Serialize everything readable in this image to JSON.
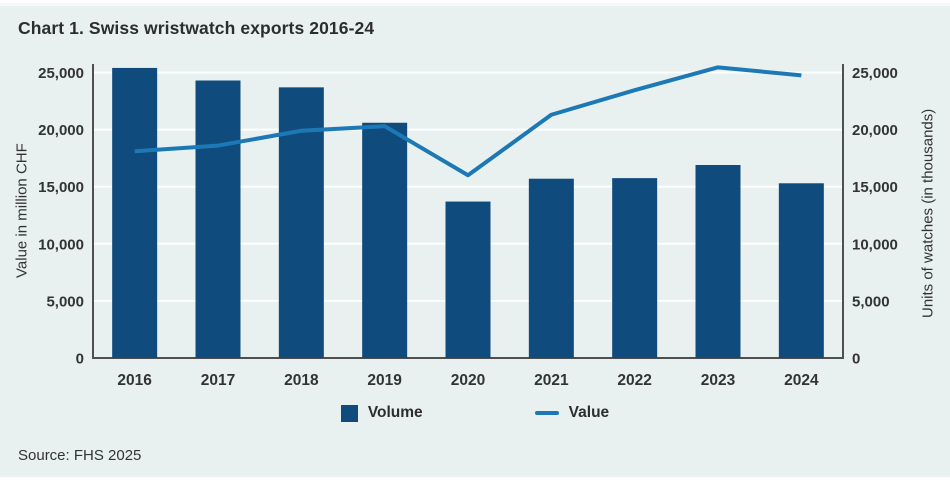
{
  "page": {
    "source": "Source: FHS 2025"
  },
  "chart_data": {
    "type": "bar+line",
    "title": "Chart 1. Swiss wristwatch exports 2016-24",
    "categories": [
      "2016",
      "2017",
      "2018",
      "2019",
      "2020",
      "2021",
      "2022",
      "2023",
      "2024"
    ],
    "series": [
      {
        "name": "Volume",
        "type": "bar",
        "axis": "right",
        "unit": "thousands of watches",
        "values": [
          25400,
          24300,
          23700,
          20600,
          13700,
          15700,
          15750,
          16900,
          15300
        ]
      },
      {
        "name": "Value",
        "type": "line",
        "axis": "left",
        "unit": "million CHF",
        "values": [
          18100,
          18600,
          19900,
          20300,
          16000,
          21300,
          23450,
          25450,
          24750
        ]
      }
    ],
    "ylabel_left": "Value in million CHF",
    "ylabel_right": "Units of watches (in thousands)",
    "y_ticks": [
      0,
      5000,
      10000,
      15000,
      20000,
      25000
    ],
    "y_tick_labels": [
      "0",
      "5,000",
      "10,000",
      "15,000",
      "20,000",
      "25,000"
    ],
    "ylim": [
      0,
      26000
    ],
    "grid": "horizontal-white",
    "legend_position": "bottom-center",
    "colors": {
      "bar": "#104b7d",
      "line": "#1d79b5",
      "background": "#e9f1f0",
      "grid": "#fdfefe",
      "axis": "#4f4f4f",
      "text": "#333333"
    }
  }
}
